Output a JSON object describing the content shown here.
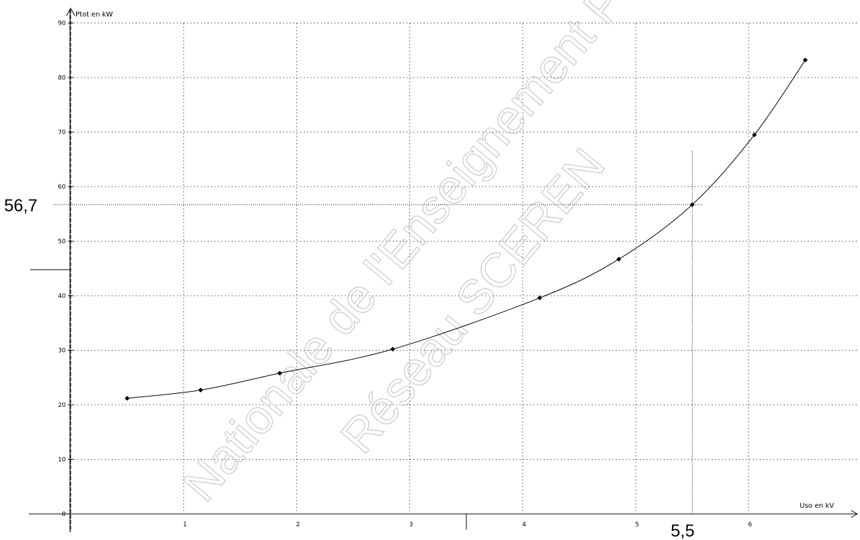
{
  "chart_data": {
    "type": "line",
    "title": "",
    "xlabel": "Uso en kV",
    "ylabel": "Ptot en kW",
    "xlim": [
      0,
      6.6
    ],
    "ylim": [
      0,
      90
    ],
    "x_ticks": [
      "0",
      "1",
      "2",
      "3",
      "4",
      "5",
      "6"
    ],
    "y_ticks": [
      "0",
      "10",
      "20",
      "30",
      "40",
      "50",
      "60",
      "70",
      "80",
      "90"
    ],
    "grid": true,
    "series": [
      {
        "x": [
          0.5,
          1.15,
          1.85,
          2.85,
          4.15,
          4.85,
          5.5,
          6.05,
          6.5
        ],
        "y": [
          21.2,
          22.7,
          25.8,
          30.2,
          39.6,
          46.7,
          56.7,
          69.5,
          83.2
        ]
      }
    ],
    "annotations": {
      "y_value": "56,7",
      "x_value": "5,5",
      "x": 5.5,
      "y": 56.7
    }
  },
  "watermark": {
    "line1": "Nationale de l'Enseignement Professionnel",
    "line2": "Réseau SCEREN"
  }
}
